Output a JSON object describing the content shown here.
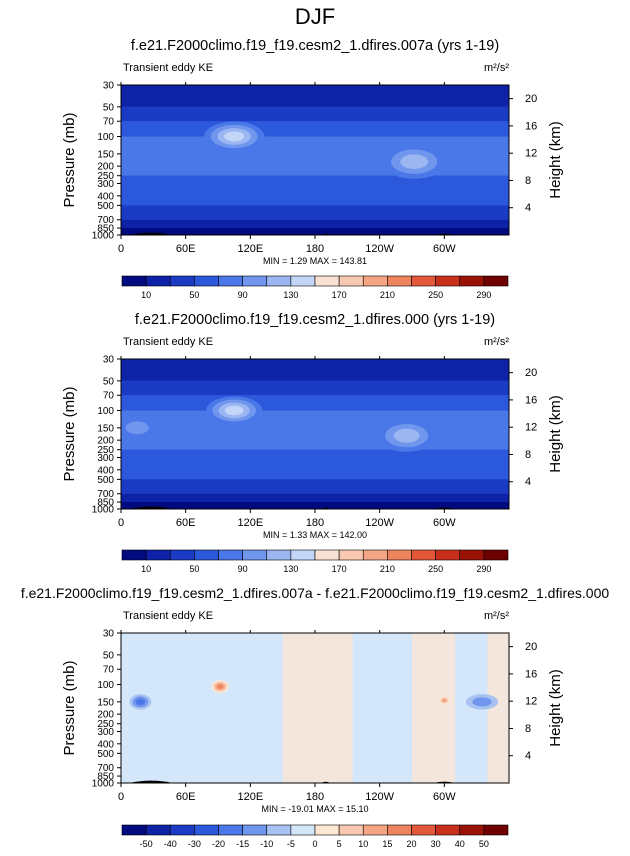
{
  "page_title": "DJF",
  "icons": {
    "land_mask_color": "#000000"
  },
  "chart_data": [
    {
      "type": "heatmap",
      "title": "f.e21.F2000climo.f19_f19.cesm2_1.dfires.007a (yrs 1-19)",
      "subtitle": "Transient eddy KE",
      "units": "m²/s²",
      "xlabel": "",
      "ylabel": "Pressure (mb)",
      "ylabel_right": "Height (km)",
      "x_ticks": [
        "0",
        "60E",
        "120E",
        "180",
        "120W",
        "60W"
      ],
      "x_tick_values": [
        0,
        60,
        120,
        180,
        240,
        300
      ],
      "xlim": [
        0,
        360
      ],
      "y_ticks": [
        "30",
        "50",
        "70",
        "100",
        "150",
        "200",
        "250",
        "300",
        "400",
        "500",
        "700",
        "850",
        "1000"
      ],
      "y_tick_values": [
        30,
        50,
        70,
        100,
        150,
        200,
        250,
        300,
        400,
        500,
        700,
        850,
        1000
      ],
      "ylim": [
        30,
        1000
      ],
      "y_scale": "log",
      "height_ticks": [
        "4",
        "8",
        "12",
        "16",
        "20"
      ],
      "height_tick_values": [
        4,
        8,
        12,
        16,
        20
      ],
      "stats": "MIN =   1.29  MAX = 143.81",
      "colorbar_labels": [
        "10",
        "50",
        "90",
        "130",
        "170",
        "210",
        "250",
        "290"
      ],
      "levels": [
        10,
        30,
        50,
        70,
        90,
        110,
        130,
        150,
        170,
        190,
        210,
        230,
        250,
        270,
        290
      ],
      "colors": [
        "#020a80",
        "#0d22a6",
        "#1b3bc4",
        "#2c58dc",
        "#4a78e8",
        "#7196ee",
        "#9cb6f2",
        "#c3d6f8",
        "#f8e0d2",
        "#f8c8b0",
        "#f4a684",
        "#ee845e",
        "#e4583a",
        "#c8301c",
        "#9a1206",
        "#6e0000"
      ],
      "blobs": [
        {
          "lon": 105,
          "p": 100,
          "level": 7,
          "w": 28,
          "h": 0.35
        },
        {
          "lon": 272,
          "p": 180,
          "level": 6,
          "w": 30,
          "h": 0.4
        },
        {
          "lon": 345,
          "p": 160,
          "level": 4,
          "w": 20,
          "h": 0.25
        },
        {
          "lon": 20,
          "p": 150,
          "level": 4,
          "w": 15,
          "h": 0.2
        }
      ]
    },
    {
      "type": "heatmap",
      "title": "f.e21.F2000climo.f19_f19.cesm2_1.dfires.000 (yrs 1-19)",
      "subtitle": "Transient eddy KE",
      "units": "m²/s²",
      "xlabel": "",
      "ylabel": "Pressure (mb)",
      "ylabel_right": "Height (km)",
      "x_ticks": [
        "0",
        "60E",
        "120E",
        "180",
        "120W",
        "60W"
      ],
      "x_tick_values": [
        0,
        60,
        120,
        180,
        240,
        300
      ],
      "xlim": [
        0,
        360
      ],
      "y_ticks": [
        "30",
        "50",
        "70",
        "100",
        "150",
        "200",
        "250",
        "300",
        "400",
        "500",
        "700",
        "850",
        "1000"
      ],
      "y_tick_values": [
        30,
        50,
        70,
        100,
        150,
        200,
        250,
        300,
        400,
        500,
        700,
        850,
        1000
      ],
      "ylim": [
        30,
        1000
      ],
      "y_scale": "log",
      "height_ticks": [
        "4",
        "8",
        "12",
        "16",
        "20"
      ],
      "height_tick_values": [
        4,
        8,
        12,
        16,
        20
      ],
      "stats": "MIN =   1.33  MAX = 142.00",
      "colorbar_labels": [
        "10",
        "50",
        "90",
        "130",
        "170",
        "210",
        "250",
        "290"
      ],
      "levels": [
        10,
        30,
        50,
        70,
        90,
        110,
        130,
        150,
        170,
        190,
        210,
        230,
        250,
        270,
        290
      ],
      "colors": [
        "#020a80",
        "#0d22a6",
        "#1b3bc4",
        "#2c58dc",
        "#4a78e8",
        "#7196ee",
        "#9cb6f2",
        "#c3d6f8",
        "#f8e0d2",
        "#f8c8b0",
        "#f4a684",
        "#ee845e",
        "#e4583a",
        "#c8301c",
        "#9a1206",
        "#6e0000"
      ],
      "blobs": [
        {
          "lon": 105,
          "p": 100,
          "level": 7,
          "w": 26,
          "h": 0.33
        },
        {
          "lon": 265,
          "p": 180,
          "level": 6,
          "w": 28,
          "h": 0.38
        },
        {
          "lon": 15,
          "p": 150,
          "level": 5,
          "w": 18,
          "h": 0.25
        },
        {
          "lon": 330,
          "p": 160,
          "level": 4,
          "w": 22,
          "h": 0.25
        }
      ]
    },
    {
      "type": "heatmap",
      "title": "f.e21.F2000climo.f19_f19.cesm2_1.dfires.007a - f.e21.F2000climo.f19_f19.cesm2_1.dfires.000",
      "subtitle": "Transient eddy KE",
      "units": "m²/s²",
      "xlabel": "",
      "ylabel": "Pressure (mb)",
      "ylabel_right": "Height (km)",
      "x_ticks": [
        "0",
        "60E",
        "120E",
        "180",
        "120W",
        "60W"
      ],
      "x_tick_values": [
        0,
        60,
        120,
        180,
        240,
        300
      ],
      "xlim": [
        0,
        360
      ],
      "y_ticks": [
        "30",
        "50",
        "70",
        "100",
        "150",
        "200",
        "250",
        "300",
        "400",
        "500",
        "700",
        "850",
        "1000"
      ],
      "y_tick_values": [
        30,
        50,
        70,
        100,
        150,
        200,
        250,
        300,
        400,
        500,
        700,
        850,
        1000
      ],
      "ylim": [
        30,
        1000
      ],
      "y_scale": "log",
      "height_ticks": [
        "4",
        "8",
        "12",
        "16",
        "20"
      ],
      "height_tick_values": [
        4,
        8,
        12,
        16,
        20
      ],
      "stats": "MIN = -19.01  MAX =  15.10",
      "colorbar_labels": [
        "-50",
        "-40",
        "-30",
        "-20",
        "-15",
        "-10",
        "-5",
        "0",
        "5",
        "10",
        "15",
        "20",
        "30",
        "40",
        "50"
      ],
      "levels": [
        -50,
        -40,
        -30,
        -20,
        -15,
        -10,
        -5,
        0,
        5,
        10,
        15,
        20,
        30,
        40,
        50
      ],
      "colors": [
        "#020a80",
        "#0d22a6",
        "#1b3bc4",
        "#2c58dc",
        "#4a78e8",
        "#7196ee",
        "#a8c2f2",
        "#d4e6fa",
        "#fde6d2",
        "#f8c8b0",
        "#f4a684",
        "#ee845e",
        "#e4583a",
        "#c8301c",
        "#9a1206",
        "#6e0000"
      ],
      "blobs": [
        {
          "lon": 18,
          "p": 150,
          "level": 4,
          "w": 10,
          "h": 0.18
        },
        {
          "lon": 92,
          "p": 105,
          "level": 11,
          "w": 8,
          "h": 0.15
        },
        {
          "lon": 300,
          "p": 145,
          "level": 10,
          "w": 5,
          "h": 0.1
        },
        {
          "lon": 335,
          "p": 150,
          "level": 5,
          "w": 15,
          "h": 0.18
        }
      ]
    }
  ]
}
